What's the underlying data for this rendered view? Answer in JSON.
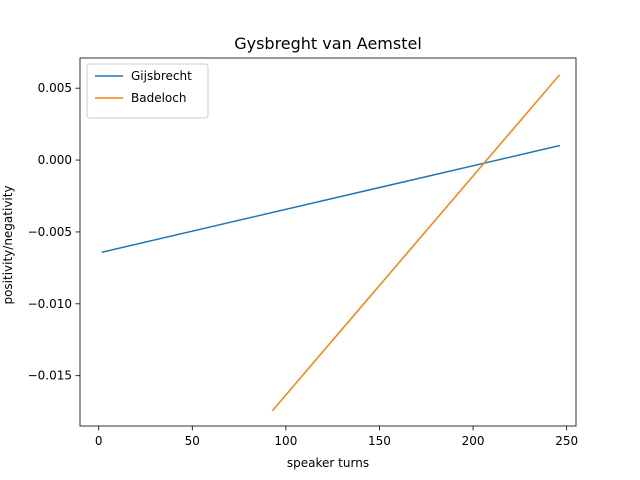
{
  "chart_data": {
    "type": "line",
    "title": "Gysbreght van Aemstel",
    "xlabel": "speaker turns",
    "ylabel": "positivity/negativity",
    "xlim": [
      -10,
      255
    ],
    "ylim": [
      -0.0185,
      0.0071
    ],
    "x_ticks": [
      0,
      50,
      100,
      150,
      200,
      250
    ],
    "x_tick_labels": [
      "0",
      "50",
      "100",
      "150",
      "200",
      "250"
    ],
    "y_ticks": [
      -0.015,
      -0.01,
      -0.005,
      0.0,
      0.005
    ],
    "y_tick_labels": [
      "−0.015",
      "−0.010",
      "−0.005",
      "0.000",
      "0.005"
    ],
    "grid": false,
    "legend_position": "top-left",
    "series": [
      {
        "name": "Gijsbrecht",
        "color": "#1f77b4",
        "x": [
          2,
          246
        ],
        "y": [
          -0.0064,
          0.001
        ]
      },
      {
        "name": "Badeloch",
        "color": "#ff7f0e",
        "x": [
          93,
          246
        ],
        "y": [
          -0.0174,
          0.0059
        ]
      }
    ]
  }
}
